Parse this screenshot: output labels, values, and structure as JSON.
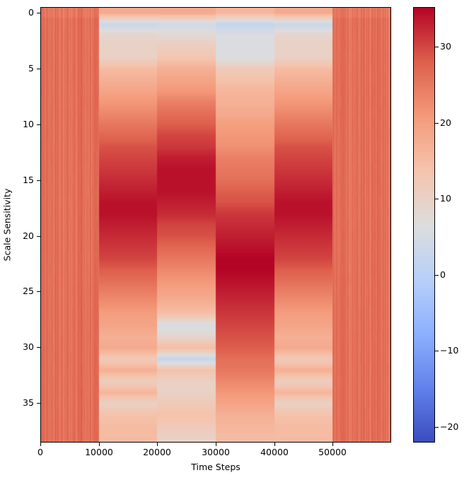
{
  "chart_data": {
    "type": "heatmap",
    "title": "",
    "xlabel": "Time Steps",
    "ylabel": "Scale Sensitivity",
    "xlim": [
      0,
      60000
    ],
    "ylim": [
      38.5,
      -0.5
    ],
    "x_ticks": [
      0,
      10000,
      20000,
      30000,
      40000,
      50000
    ],
    "x_tick_labels": [
      "0",
      "10000",
      "20000",
      "30000",
      "40000",
      "50000"
    ],
    "y_ticks": [
      0,
      5,
      10,
      15,
      20,
      25,
      30,
      35
    ],
    "y_tick_labels": [
      "0",
      "5",
      "10",
      "15",
      "20",
      "25",
      "30",
      "35"
    ],
    "n_rows": 39,
    "colormap": "coolwarm",
    "colorbar": {
      "vmin": -22,
      "vmax": 35,
      "ticks": [
        -20,
        -10,
        0,
        10,
        20,
        30
      ],
      "tick_labels": [
        "−20",
        "−10",
        "0",
        "10",
        "20",
        "30"
      ]
    },
    "segments": [
      {
        "x_start": 0,
        "x_end": 10000,
        "kind": "noisy",
        "mean": 26,
        "jitter": 2.2,
        "rows": [
          25,
          26,
          26,
          26,
          26,
          26,
          26,
          26,
          26,
          26,
          26,
          26,
          26,
          26,
          26,
          26,
          26,
          26,
          26,
          26,
          26,
          26,
          26,
          26,
          26,
          26,
          26,
          26,
          26,
          26,
          26,
          26,
          26,
          26,
          26,
          26,
          26,
          26,
          26
        ]
      },
      {
        "x_start": 10000,
        "x_end": 20000,
        "kind": "smooth",
        "rows": [
          18,
          3,
          9,
          10,
          10,
          15,
          17,
          19,
          21,
          23,
          25,
          27,
          29,
          30,
          31,
          32,
          33,
          34,
          34,
          33,
          32,
          31,
          30,
          28,
          26,
          24,
          22,
          20,
          19,
          17,
          18,
          12,
          17,
          11,
          16,
          10,
          14,
          15,
          15
        ]
      },
      {
        "x_start": 20000,
        "x_end": 30000,
        "kind": "smooth",
        "rows": [
          18,
          4,
          8,
          11,
          13,
          17,
          19,
          21,
          24,
          26,
          28,
          30,
          31,
          33,
          34,
          34,
          34,
          33,
          32,
          30,
          29,
          27,
          25,
          23,
          21,
          19,
          17,
          14,
          5,
          9,
          15,
          2,
          14,
          10,
          10,
          12,
          14,
          12,
          10
        ]
      },
      {
        "x_start": 30000,
        "x_end": 40000,
        "kind": "smooth",
        "rows": [
          16,
          2,
          6,
          6,
          6,
          12,
          14,
          16,
          17,
          18,
          20,
          21,
          22,
          24,
          25,
          26,
          28,
          29,
          31,
          32,
          33,
          34,
          35,
          35,
          34,
          33,
          32,
          31,
          30,
          29,
          28,
          26,
          25,
          23,
          21,
          19,
          17,
          16,
          15
        ]
      },
      {
        "x_start": 40000,
        "x_end": 50000,
        "kind": "smooth",
        "rows": [
          18,
          3,
          9,
          10,
          10,
          15,
          17,
          19,
          21,
          23,
          25,
          27,
          29,
          30,
          31,
          32,
          33,
          34,
          34,
          33,
          32,
          31,
          30,
          28,
          26,
          24,
          22,
          20,
          19,
          17,
          18,
          12,
          17,
          11,
          16,
          10,
          14,
          15,
          15
        ]
      },
      {
        "x_start": 50000,
        "x_end": 60000,
        "kind": "noisy",
        "mean": 26,
        "jitter": 2.2,
        "rows": [
          25,
          26,
          26,
          26,
          26,
          26,
          26,
          26,
          26,
          26,
          26,
          26,
          26,
          26,
          26,
          26,
          26,
          26,
          26,
          26,
          26,
          26,
          26,
          26,
          26,
          26,
          26,
          26,
          26,
          26,
          26,
          26,
          26,
          26,
          26,
          26,
          26,
          26,
          26
        ]
      }
    ]
  }
}
